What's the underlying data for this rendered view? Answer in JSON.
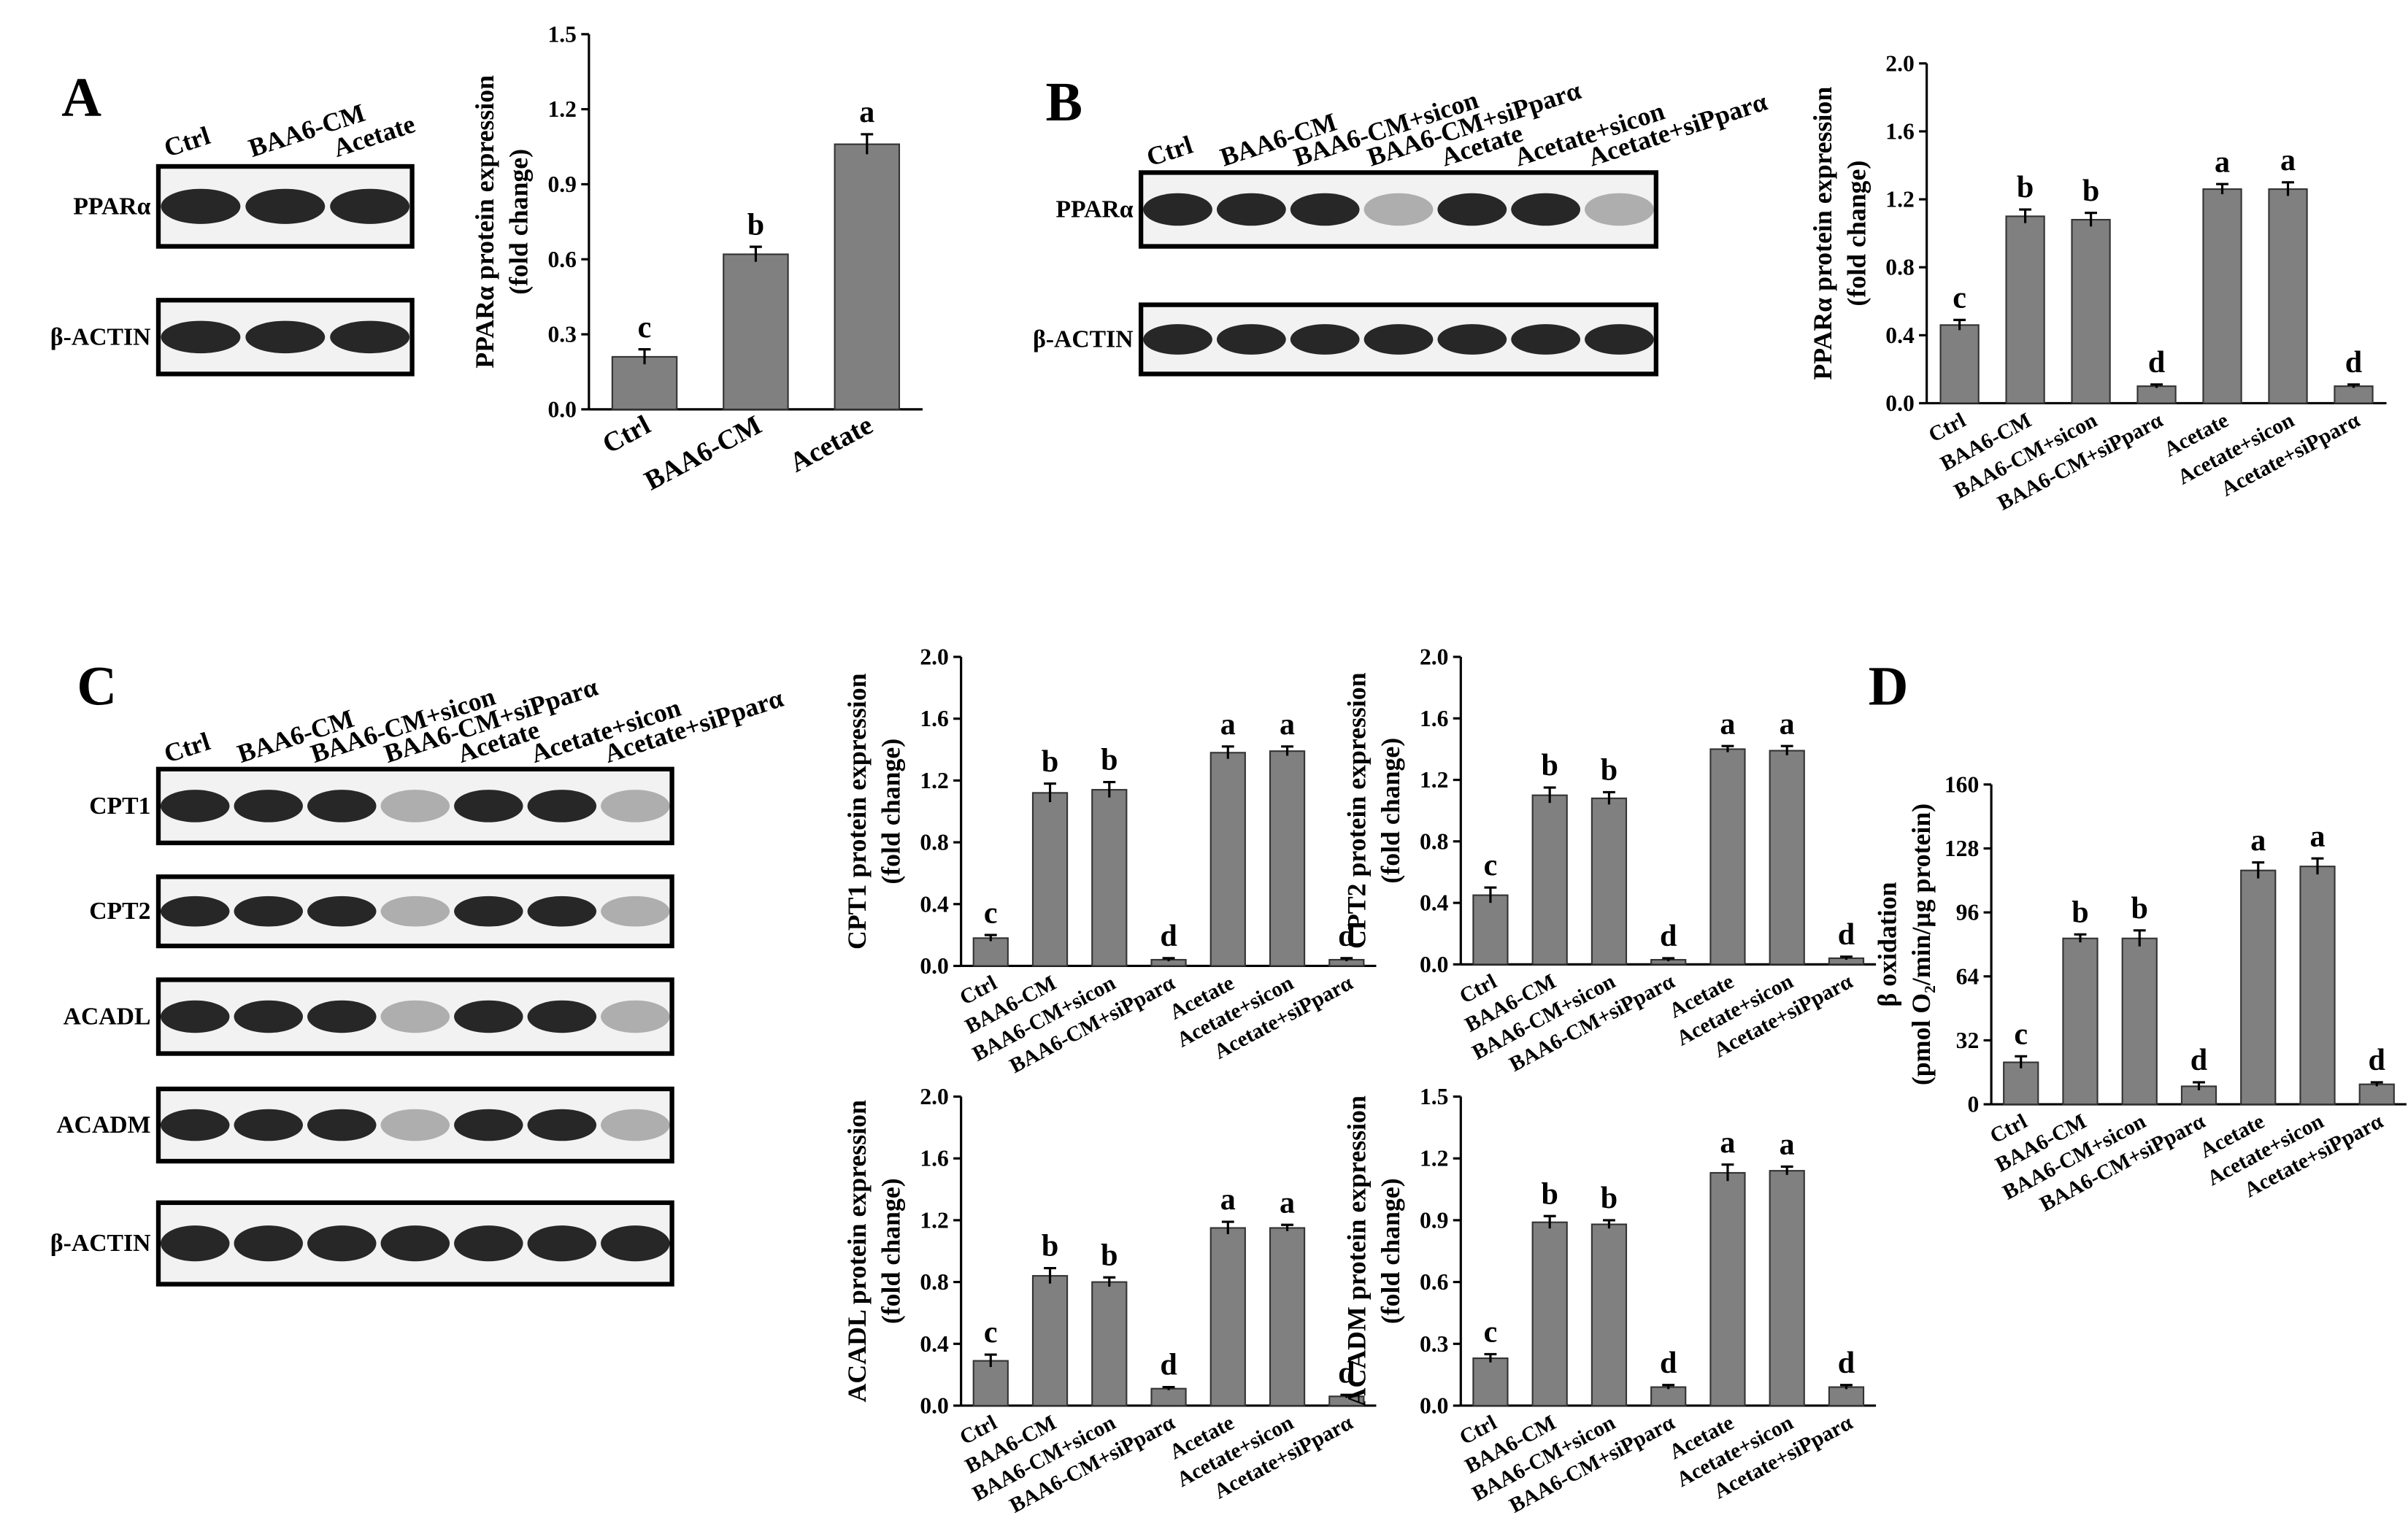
{
  "chart_data": [
    {
      "type": "bar",
      "panel": null,
      "categories": [
        "Ctrl",
        "BAA6-CM",
        "Acetate"
      ],
      "ylabel": [
        "PPARα protein expression",
        "(fold change)"
      ],
      "values": [
        0.21,
        0.62,
        1.06
      ],
      "errors": [
        0.03,
        0.03,
        0.04
      ],
      "letters": [
        "c",
        "b",
        "a"
      ],
      "color": "#808080",
      "ylim": [
        0,
        1.5
      ],
      "yticks": [
        {
          "value": 0,
          "label": "0.0"
        },
        0.3,
        0.6,
        0.9,
        1.2,
        1.5
      ]
    },
    {
      "type": "bar",
      "panel": null,
      "categories": [
        "Ctrl",
        "BAA6-CM",
        "BAA6-CM+sicon",
        "BAA6-CM+siPparα",
        "Acetate",
        "Acetate+sicon",
        "Acetate+siPparα"
      ],
      "ylabel": [
        "PPARα protein expression",
        "(fold change)"
      ],
      "values": [
        0.46,
        1.1,
        1.08,
        0.1,
        1.26,
        1.26,
        0.1
      ],
      "errors": [
        0.03,
        0.04,
        0.04,
        0.01,
        0.03,
        0.04,
        0.01
      ],
      "letters": [
        "c",
        "b",
        "b",
        "d",
        "a",
        "a",
        "d"
      ],
      "color": "#808080",
      "ylim": [
        0,
        2
      ],
      "yticks": [
        {
          "value": 0,
          "label": "0.0"
        },
        0.4,
        0.8,
        1.2,
        1.6,
        {
          "value": 2,
          "label": "2.0"
        }
      ]
    },
    {
      "type": "bar",
      "panel": null,
      "categories": [
        "Ctrl",
        "BAA6-CM",
        "BAA6-CM+sicon",
        "BAA6-CM+siPparα",
        "Acetate",
        "Acetate+sicon",
        "Acetate+siPparα"
      ],
      "ylabel": [
        "CPT1 protein expression",
        "(fold change)"
      ],
      "values": [
        0.18,
        1.12,
        1.14,
        0.04,
        1.38,
        1.39,
        0.04
      ],
      "errors": [
        0.02,
        0.06,
        0.05,
        0.01,
        0.04,
        0.03,
        0.01
      ],
      "letters": [
        "c",
        "b",
        "b",
        "d",
        "a",
        "a",
        "d"
      ],
      "color": "#808080",
      "ylim": [
        0,
        2
      ],
      "yticks": [
        {
          "value": 0,
          "label": "0.0"
        },
        0.4,
        0.8,
        1.2,
        1.6,
        {
          "value": 2,
          "label": "2.0"
        }
      ]
    },
    {
      "type": "bar",
      "panel": null,
      "categories": [
        "Ctrl",
        "BAA6-CM",
        "BAA6-CM+sicon",
        "BAA6-CM+siPparα",
        "Acetate",
        "Acetate+sicon",
        "Acetate+siPparα"
      ],
      "ylabel": [
        "CPT2 protein expression",
        "(fold change)"
      ],
      "values": [
        0.45,
        1.1,
        1.08,
        0.03,
        1.4,
        1.39,
        0.04
      ],
      "errors": [
        0.05,
        0.05,
        0.04,
        0.01,
        0.02,
        0.03,
        0.01
      ],
      "letters": [
        "c",
        "b",
        "b",
        "d",
        "a",
        "a",
        "d"
      ],
      "color": "#808080",
      "ylim": [
        0,
        2
      ],
      "yticks": [
        {
          "value": 0,
          "label": "0.0"
        },
        0.4,
        0.8,
        1.2,
        1.6,
        {
          "value": 2,
          "label": "2.0"
        }
      ]
    },
    {
      "type": "bar",
      "panel": null,
      "categories": [
        "Ctrl",
        "BAA6-CM",
        "BAA6-CM+sicon",
        "BAA6-CM+siPparα",
        "Acetate",
        "Acetate+sicon",
        "Acetate+siPparα"
      ],
      "ylabel": [
        "ACADL protein expression",
        "(fold change)"
      ],
      "values": [
        0.29,
        0.84,
        0.8,
        0.11,
        1.15,
        1.15,
        0.06
      ],
      "errors": [
        0.04,
        0.05,
        0.03,
        0.01,
        0.04,
        0.02,
        0.01
      ],
      "letters": [
        "c",
        "b",
        "b",
        "d",
        "a",
        "a",
        "d"
      ],
      "color": "#808080",
      "ylim": [
        0,
        2
      ],
      "yticks": [
        {
          "value": 0,
          "label": "0.0"
        },
        0.4,
        0.8,
        1.2,
        1.6,
        {
          "value": 2,
          "label": "2.0"
        }
      ]
    },
    {
      "type": "bar",
      "panel": null,
      "categories": [
        "Ctrl",
        "BAA6-CM",
        "BAA6-CM+sicon",
        "BAA6-CM+siPparα",
        "Acetate",
        "Acetate+sicon",
        "Acetate+siPparα"
      ],
      "ylabel": [
        "ACADM protein expression",
        "(fold change)"
      ],
      "values": [
        0.23,
        0.89,
        0.88,
        0.09,
        1.13,
        1.14,
        0.09
      ],
      "errors": [
        0.02,
        0.03,
        0.02,
        0.01,
        0.04,
        0.02,
        0.01
      ],
      "letters": [
        "c",
        "b",
        "b",
        "d",
        "a",
        "a",
        "d"
      ],
      "color": "#808080",
      "ylim": [
        0,
        1.5
      ],
      "yticks": [
        {
          "value": 0,
          "label": "0.0"
        },
        0.3,
        0.6,
        0.9,
        1.2,
        1.5
      ]
    },
    {
      "type": "bar",
      "panel": "D",
      "categories": [
        "Ctrl",
        "BAA6-CM",
        "BAA6-CM+sicon",
        "BAA6-CM+siPparα",
        "Acetate",
        "Acetate+sicon",
        "Acetate+siPparα"
      ],
      "ylabel": [
        "β oxidation",
        "(pmol O₂/min/μg protein)"
      ],
      "values": [
        21,
        83,
        83,
        9,
        117,
        119,
        10
      ],
      "errors": [
        3,
        2,
        4,
        2,
        4,
        4,
        1
      ],
      "letters": [
        "c",
        "b",
        "b",
        "d",
        "a",
        "a",
        "d"
      ],
      "color": "#808080",
      "ylim": [
        0,
        160
      ],
      "yticks": [
        0,
        32,
        64,
        96,
        128,
        160
      ]
    }
  ],
  "blots": [
    {
      "panel": "A",
      "lanes": [
        "Ctrl",
        "BAA6-CM",
        "Acetate"
      ],
      "rows": [
        "PPARα",
        "β-ACTIN"
      ]
    },
    {
      "panel": "B",
      "lanes": [
        "Ctrl",
        "BAA6-CM",
        "BAA6-CM+sicon",
        "BAA6-CM+siPparα",
        "Acetate",
        "Acetate+sicon",
        "Acetate+siPparα"
      ],
      "rows": [
        "PPARα",
        "β-ACTIN"
      ]
    },
    {
      "panel": "C",
      "lanes": [
        "Ctrl",
        "BAA6-CM",
        "BAA6-CM+sicon",
        "BAA6-CM+siPparα",
        "Acetate",
        "Acetate+sicon",
        "Acetate+siPparα"
      ],
      "rows": [
        "CPT1",
        "CPT2",
        "ACADL",
        "ACADM",
        "β-ACTIN"
      ]
    }
  ]
}
